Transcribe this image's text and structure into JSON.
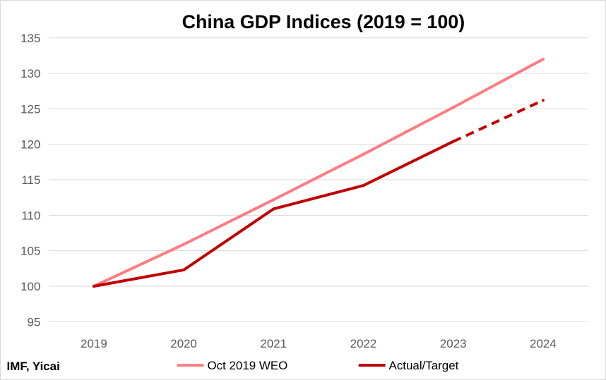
{
  "chart_data": {
    "type": "line",
    "title": "China GDP Indices (2019 = 100)",
    "xlabel": "",
    "ylabel": "",
    "categories": [
      "2019",
      "2020",
      "2021",
      "2022",
      "2023",
      "2024"
    ],
    "ylim": [
      95,
      135
    ],
    "yticks": [
      95,
      100,
      105,
      110,
      115,
      120,
      125,
      130,
      135
    ],
    "grid": true,
    "legend_placement": "bottom",
    "series": [
      {
        "name": "Oct 2019 WEO",
        "color": "#ff7c80",
        "values": [
          100,
          105.9,
          112.2,
          118.6,
          125.2,
          132.0
        ]
      },
      {
        "name": "Actual/Target",
        "color": "#c00000",
        "values": [
          100,
          102.3,
          110.9,
          114.2,
          120.4,
          126.2
        ],
        "dashed_from_index": 4
      }
    ],
    "source": "IMF, Yicai"
  }
}
